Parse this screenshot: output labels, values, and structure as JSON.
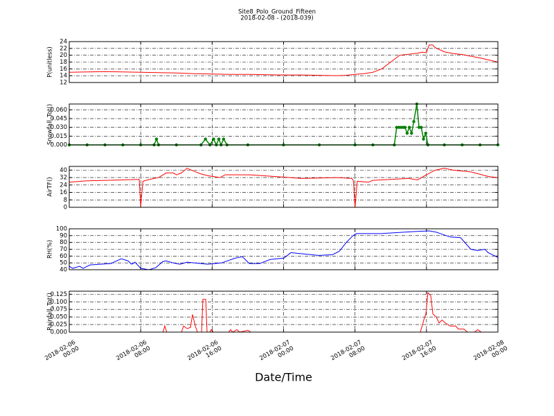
{
  "chart_data": [
    {
      "type": "line",
      "title": "Site8_Polo_Ground_Fifteen",
      "subtitle": "2018-02-08 - (2018-039)",
      "ylabel": "P(unitless)",
      "color": "#ff0000",
      "grid": true,
      "xlim": [
        "2018-02-06 00:00",
        "2018-02-08 00:00"
      ],
      "xticks": [
        "2018-02-06 00:00",
        "2018-02-06 08:00",
        "2018-02-06 16:00",
        "2018-02-07 00:00",
        "2018-02-07 08:00",
        "2018-02-07 16:00",
        "2018-02-08 00:00"
      ],
      "ylim": [
        12,
        24
      ],
      "yticks": [
        12,
        14,
        16,
        18,
        20,
        22,
        24
      ],
      "x": [
        "2018-02-06 00:00",
        "2018-02-06 02:00",
        "2018-02-06 04:00",
        "2018-02-06 06:00",
        "2018-02-06 08:00",
        "2018-02-06 10:00",
        "2018-02-06 12:00",
        "2018-02-06 14:00",
        "2018-02-06 16:00",
        "2018-02-06 18:00",
        "2018-02-06 20:00",
        "2018-02-06 22:00",
        "2018-02-07 00:00",
        "2018-02-07 02:00",
        "2018-02-07 04:00",
        "2018-02-07 06:00",
        "2018-02-07 07:00",
        "2018-02-07 08:00",
        "2018-02-07 09:00",
        "2018-02-07 10:00",
        "2018-02-07 11:00",
        "2018-02-07 12:00",
        "2018-02-07 13:00",
        "2018-02-07 14:00",
        "2018-02-07 15:00",
        "2018-02-07 15:30",
        "2018-02-07 16:00",
        "2018-02-07 16:18",
        "2018-02-07 16:42",
        "2018-02-07 17:00",
        "2018-02-07 18:00",
        "2018-02-07 19:00",
        "2018-02-07 20:00",
        "2018-02-07 22:00",
        "2018-02-08 00:00"
      ],
      "values": [
        15.0,
        15.1,
        15.2,
        15.1,
        15.0,
        14.9,
        14.8,
        14.6,
        14.5,
        14.4,
        14.4,
        14.3,
        14.2,
        14.2,
        14.1,
        14.0,
        14.1,
        14.4,
        14.6,
        15.0,
        16.0,
        18.0,
        20.0,
        20.3,
        20.6,
        20.9,
        20.8,
        23.0,
        23.0,
        22.2,
        21.0,
        20.5,
        20.2,
        19.2,
        18.0
      ]
    },
    {
      "type": "line",
      "ylabel": "Snowfall_Tot()",
      "color": "#008000",
      "marker": "o",
      "grid": true,
      "xlim": [
        "2018-02-06 00:00",
        "2018-02-08 00:00"
      ],
      "xticks": [
        "2018-02-06 00:00",
        "2018-02-06 08:00",
        "2018-02-06 16:00",
        "2018-02-07 00:00",
        "2018-02-07 08:00",
        "2018-02-07 16:00",
        "2018-02-08 00:00"
      ],
      "ylim": [
        0,
        0.07
      ],
      "yticks": [
        {
          "value": 0,
          "label": "0.000"
        },
        {
          "value": 0.015,
          "label": "0.015"
        },
        {
          "value": 0.03,
          "label": "0.030"
        },
        {
          "value": 0.045,
          "label": "0.045"
        },
        {
          "value": 0.06,
          "label": "0.060"
        }
      ],
      "x": [
        "2018-02-06 00:00",
        "2018-02-06 02:00",
        "2018-02-06 04:00",
        "2018-02-06 06:00",
        "2018-02-06 08:00",
        "2018-02-06 09:30",
        "2018-02-06 09:46",
        "2018-02-06 10:00",
        "2018-02-06 12:00",
        "2018-02-06 14:45",
        "2018-02-06 15:15",
        "2018-02-06 15:45",
        "2018-02-06 16:10",
        "2018-02-06 16:28",
        "2018-02-06 16:45",
        "2018-02-06 17:00",
        "2018-02-06 17:17",
        "2018-02-06 17:40",
        "2018-02-06 20:00",
        "2018-02-07 00:00",
        "2018-02-07 04:00",
        "2018-02-07 08:00",
        "2018-02-07 10:00",
        "2018-02-07 12:24",
        "2018-02-07 12:40",
        "2018-02-07 12:55",
        "2018-02-07 13:10",
        "2018-02-07 13:25",
        "2018-02-07 13:36",
        "2018-02-07 13:50",
        "2018-02-07 14:05",
        "2018-02-07 14:20",
        "2018-02-07 14:35",
        "2018-02-07 14:55",
        "2018-02-07 15:10",
        "2018-02-07 15:25",
        "2018-02-07 15:40",
        "2018-02-07 15:55",
        "2018-02-07 16:10",
        "2018-02-07 18:00",
        "2018-02-07 20:00",
        "2018-02-07 22:00",
        "2018-02-08 00:00"
      ],
      "values": [
        0,
        0,
        0,
        0,
        0,
        0,
        0.01,
        0,
        0,
        0,
        0.01,
        0,
        0.01,
        0,
        0.01,
        0,
        0.01,
        0,
        0,
        0,
        0,
        0,
        0,
        0,
        0.03,
        0.03,
        0.03,
        0.03,
        0.03,
        0.02,
        0.03,
        0.02,
        0.04,
        0.07,
        0.03,
        0.03,
        0.01,
        0.02,
        0,
        0,
        0,
        0,
        0
      ]
    },
    {
      "type": "line",
      "ylabel": "AirTF()",
      "color": "#ff0000",
      "grid": true,
      "xlim": [
        "2018-02-06 00:00",
        "2018-02-08 00:00"
      ],
      "xticks": [
        "2018-02-06 00:00",
        "2018-02-06 08:00",
        "2018-02-06 16:00",
        "2018-02-07 00:00",
        "2018-02-07 08:00",
        "2018-02-07 16:00",
        "2018-02-08 00:00"
      ],
      "ylim": [
        0,
        44
      ],
      "yticks": [
        0,
        8,
        16,
        24,
        32,
        40
      ],
      "x": [
        "2018-02-06 00:00",
        "2018-02-06 02:00",
        "2018-02-06 04:00",
        "2018-02-06 06:00",
        "2018-02-06 07:50",
        "2018-02-06 08:00",
        "2018-02-06 08:15",
        "2018-02-06 09:00",
        "2018-02-06 10:00",
        "2018-02-06 10:52",
        "2018-02-06 11:38",
        "2018-02-06 12:01",
        "2018-02-06 12:34",
        "2018-02-06 13:11",
        "2018-02-06 14:11",
        "2018-02-06 14:44",
        "2018-02-06 15:31",
        "2018-02-06 16:54",
        "2018-02-06 17:27",
        "2018-02-06 20:10",
        "2018-02-06 23:16",
        "2018-02-07 02:00",
        "2018-02-07 06:00",
        "2018-02-07 07:40",
        "2018-02-07 07:50",
        "2018-02-07 08:00",
        "2018-02-07 08:15",
        "2018-02-07 09:30",
        "2018-02-07 10:00",
        "2018-02-07 12:00",
        "2018-02-07 14:00",
        "2018-02-07 15:00",
        "2018-02-07 16:00",
        "2018-02-07 17:00",
        "2018-02-07 18:00",
        "2018-02-07 19:00",
        "2018-02-07 21:00",
        "2018-02-07 23:00",
        "2018-02-08 00:00"
      ],
      "values": [
        27,
        28.5,
        29,
        29.5,
        30,
        1,
        28,
        30,
        32,
        37,
        37,
        35,
        37,
        42,
        38,
        36,
        34,
        32,
        35,
        35,
        33,
        31,
        32,
        31,
        28,
        0,
        28,
        27,
        29,
        30,
        31,
        29.5,
        35,
        40,
        42,
        40,
        38,
        33,
        32
      ]
    },
    {
      "type": "line",
      "ylabel": "RH(%)",
      "color": "#0000ff",
      "grid": true,
      "xlim": [
        "2018-02-06 00:00",
        "2018-02-08 00:00"
      ],
      "xticks": [
        "2018-02-06 00:00",
        "2018-02-06 08:00",
        "2018-02-06 16:00",
        "2018-02-07 00:00",
        "2018-02-07 08:00",
        "2018-02-07 16:00",
        "2018-02-08 00:00"
      ],
      "ylim": [
        40,
        100
      ],
      "yticks": [
        40,
        50,
        60,
        70,
        80,
        90,
        100
      ],
      "x": [
        "2018-02-06 00:00",
        "2018-02-06 00:23",
        "2018-02-06 01:10",
        "2018-02-06 01:33",
        "2018-02-06 02:19",
        "2018-02-06 03:29",
        "2018-02-06 04:39",
        "2018-02-06 05:49",
        "2018-02-06 06:35",
        "2018-02-06 06:59",
        "2018-02-06 07:22",
        "2018-02-06 08:00",
        "2018-02-06 08:55",
        "2018-02-06 09:42",
        "2018-02-06 10:28",
        "2018-02-06 10:51",
        "2018-02-06 11:38",
        "2018-02-06 12:24",
        "2018-02-06 13:11",
        "2018-02-06 15:31",
        "2018-02-06 17:03",
        "2018-02-06 18:36",
        "2018-02-06 19:23",
        "2018-02-06 20:10",
        "2018-02-06 21:19",
        "2018-02-06 22:29",
        "2018-02-07 00:02",
        "2018-02-07 00:49",
        "2018-02-07 02:21",
        "2018-02-07 03:55",
        "2018-02-07 05:28",
        "2018-02-07 06:14",
        "2018-02-07 07:01",
        "2018-02-07 07:47",
        "2018-02-07 08:11",
        "2018-02-07 10:54",
        "2018-02-07 14:46",
        "2018-02-07 16:19",
        "2018-02-07 17:06",
        "2018-02-07 18:39",
        "2018-02-07 19:49",
        "2018-02-07 20:58",
        "2018-02-07 21:45",
        "2018-02-07 22:31",
        "2018-02-07 22:55",
        "2018-02-08 00:00"
      ],
      "values": [
        45,
        42,
        45,
        42,
        47,
        48,
        49,
        56,
        53,
        48,
        51,
        42,
        40,
        43,
        52,
        53,
        50,
        48,
        51,
        48,
        50,
        57,
        59,
        49,
        49,
        55,
        57,
        65,
        63,
        61,
        62,
        67,
        80,
        90,
        93,
        93,
        96,
        97,
        95,
        88,
        87,
        70,
        68,
        70,
        65,
        58
      ]
    },
    {
      "type": "line",
      "ylabel": "Rainfall_Tot()",
      "xlabel": "Date/Time",
      "color": "#ff0000",
      "grid": true,
      "xlim": [
        "2018-02-06 00:00",
        "2018-02-08 00:00"
      ],
      "xticks": [
        "2018-02-06 00:00",
        "2018-02-06 08:00",
        "2018-02-06 16:00",
        "2018-02-07 00:00",
        "2018-02-07 08:00",
        "2018-02-07 16:00",
        "2018-02-08 00:00"
      ],
      "ylim": [
        0,
        0.135
      ],
      "yticks": [
        {
          "value": 0,
          "label": "0.000"
        },
        {
          "value": 0.025,
          "label": "0.025"
        },
        {
          "value": 0.05,
          "label": "0.050"
        },
        {
          "value": 0.075,
          "label": "0.075"
        },
        {
          "value": 0.1,
          "label": "0.100"
        },
        {
          "value": 0.125,
          "label": "0.125"
        }
      ],
      "x": [
        "2018-02-06 00:00",
        "2018-02-06 10:30",
        "2018-02-06 10:42",
        "2018-02-06 10:55",
        "2018-02-06 12:34",
        "2018-02-06 12:48",
        "2018-02-06 13:11",
        "2018-02-06 13:34",
        "2018-02-06 13:48",
        "2018-02-06 14:07",
        "2018-02-06 14:21",
        "2018-02-06 14:49",
        "2018-02-06 14:58",
        "2018-02-06 15:17",
        "2018-02-06 15:26",
        "2018-02-06 15:44",
        "2018-02-06 15:54",
        "2018-02-06 16:08",
        "2018-02-06 17:50",
        "2018-02-06 18:04",
        "2018-02-06 18:18",
        "2018-02-06 18:46",
        "2018-02-06 19:05",
        "2018-02-06 20:00",
        "2018-02-06 20:20",
        "2018-02-07 15:19",
        "2018-02-07 15:42",
        "2018-02-07 15:56",
        "2018-02-07 16:10",
        "2018-02-07 16:29",
        "2018-02-07 16:43",
        "2018-02-07 17:06",
        "2018-02-07 17:25",
        "2018-02-07 17:44",
        "2018-02-07 18:07",
        "2018-02-07 18:39",
        "2018-02-07 19:16",
        "2018-02-07 19:35",
        "2018-02-07 20:12",
        "2018-02-07 20:35",
        "2018-02-07 21:22",
        "2018-02-07 21:45",
        "2018-02-07 22:08",
        "2018-02-08 00:00"
      ],
      "values": [
        0,
        0,
        0.02,
        0,
        0,
        0.02,
        0.012,
        0.015,
        0.058,
        0.02,
        0,
        0,
        0.108,
        0.108,
        0,
        0,
        0.008,
        0,
        0,
        0.008,
        0,
        0.008,
        0,
        0.006,
        0,
        0,
        0.04,
        0.06,
        0.13,
        0.12,
        0.06,
        0.05,
        0.03,
        0.04,
        0.03,
        0.02,
        0.02,
        0.01,
        0.01,
        0,
        0,
        0.008,
        0,
        0
      ]
    }
  ]
}
